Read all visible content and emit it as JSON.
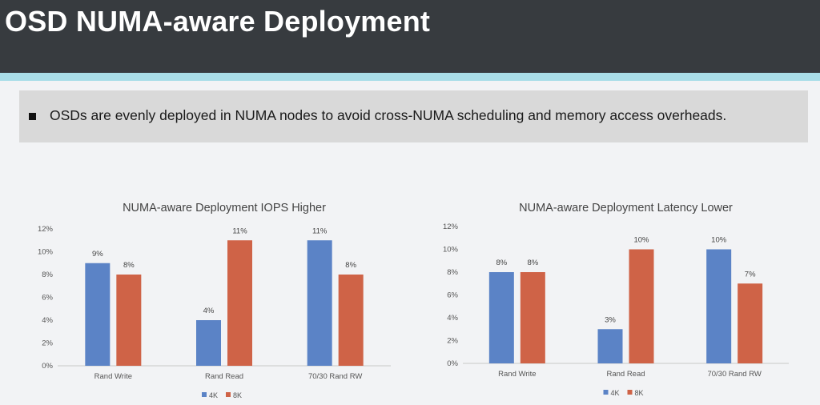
{
  "header": {
    "title": "OSD NUMA-aware Deployment"
  },
  "bullet": {
    "text": "OSDs are evenly deployed in NUMA nodes to avoid cross-NUMA scheduling and memory access overheads."
  },
  "colors": {
    "series_4k": "#5b83c6",
    "series_8k": "#cf6347",
    "header_bg": "#373b3f",
    "accent": "#a9dde8"
  },
  "chart_data": [
    {
      "type": "bar",
      "title": "NUMA-aware Deployment IOPS Higher",
      "categories": [
        "Rand Write",
        "Rand Read",
        "70/30 Rand RW"
      ],
      "series": [
        {
          "name": "4K",
          "values": [
            9,
            4,
            11
          ]
        },
        {
          "name": "8K",
          "values": [
            8,
            11,
            8
          ]
        }
      ],
      "value_labels": [
        [
          "9%",
          "4%",
          "11%"
        ],
        [
          "8%",
          "11%",
          "8%"
        ]
      ],
      "ylim": [
        0,
        12
      ],
      "yticks": [
        "0%",
        "2%",
        "4%",
        "6%",
        "8%",
        "10%",
        "12%"
      ],
      "legend": "bottom"
    },
    {
      "type": "bar",
      "title": "NUMA-aware Deployment Latency Lower",
      "categories": [
        "Rand Write",
        "Rand Read",
        "70/30 Rand RW"
      ],
      "series": [
        {
          "name": "4K",
          "values": [
            8,
            3,
            10
          ]
        },
        {
          "name": "8K",
          "values": [
            8,
            10,
            7
          ]
        }
      ],
      "value_labels": [
        [
          "8%",
          "3%",
          "10%"
        ],
        [
          "8%",
          "10%",
          "7%"
        ]
      ],
      "ylim": [
        0,
        12
      ],
      "yticks": [
        "0%",
        "2%",
        "4%",
        "6%",
        "8%",
        "10%",
        "12%"
      ],
      "legend": "bottom"
    }
  ]
}
